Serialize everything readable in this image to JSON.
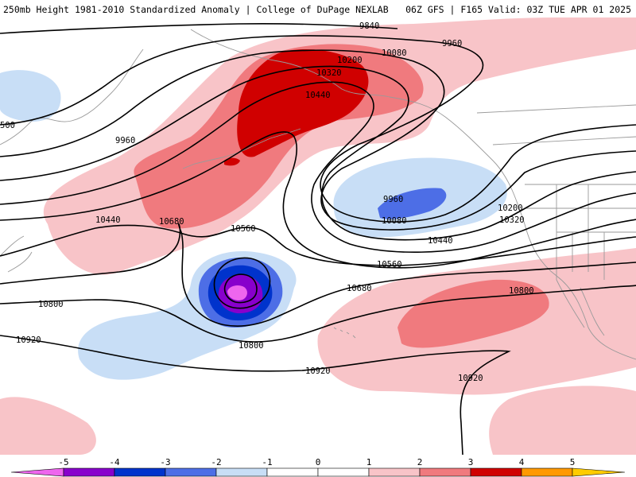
{
  "header": {
    "left": "250mb Height 1981-2010 Standardized Anomaly | College of DuPage NEXLAB",
    "right": "06Z GFS | F165 Valid: 03Z TUE APR 01 2025"
  },
  "colors": {
    "neg5": "#ee66ee",
    "neg4": "#8800cc",
    "neg3": "#0033cc",
    "neg2": "#4d6ee6",
    "neg1": "#c8def6",
    "pos1": "#f8c4c8",
    "pos2": "#f07a7e",
    "pos3": "#d00000",
    "pos4": "#ff9900",
    "pos5": "#ffcc00",
    "land": "#9a9a9a",
    "contour": "#000000"
  },
  "contour_labels": [
    "9840",
    "9960",
    "10080",
    "10200",
    "10320",
    "10440",
    "9960",
    "10440",
    "10680",
    "10560",
    "9960",
    "10080",
    "10200",
    "10320",
    "10440",
    "10560",
    "10680",
    "10800",
    "10800",
    "10800",
    "10920",
    "10920",
    "10920",
    "500"
  ],
  "colorbar": {
    "ticks": [
      "-5",
      "-4",
      "-3",
      "-2",
      "-1",
      "0",
      "1",
      "2",
      "3",
      "4",
      "5"
    ]
  }
}
